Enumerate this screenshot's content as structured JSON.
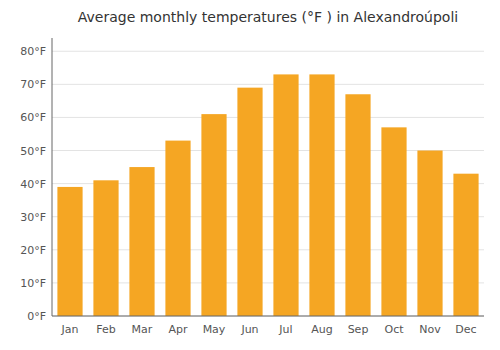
{
  "chart_data": {
    "type": "bar",
    "title": "Average monthly temperatures (°F ) in Alexandroúpoli",
    "categories": [
      "Jan",
      "Feb",
      "Mar",
      "Apr",
      "May",
      "Jun",
      "Jul",
      "Aug",
      "Sep",
      "Oct",
      "Nov",
      "Dec"
    ],
    "values": [
      39,
      41,
      45,
      53,
      61,
      69,
      73,
      73,
      67,
      57,
      50,
      43
    ],
    "color": "#F5A623",
    "ylim": [
      0,
      84
    ],
    "yticks": [
      {
        "value": 0,
        "label": "0°F"
      },
      {
        "value": 10,
        "label": "10°F"
      },
      {
        "value": 20,
        "label": "20°F"
      },
      {
        "value": 30,
        "label": "30°F"
      },
      {
        "value": 40,
        "label": "40°F"
      },
      {
        "value": 50,
        "label": "50°F"
      },
      {
        "value": 60,
        "label": "60°F"
      },
      {
        "value": 70,
        "label": "70°F"
      },
      {
        "value": 80,
        "label": "80°F"
      }
    ],
    "grid": true
  }
}
